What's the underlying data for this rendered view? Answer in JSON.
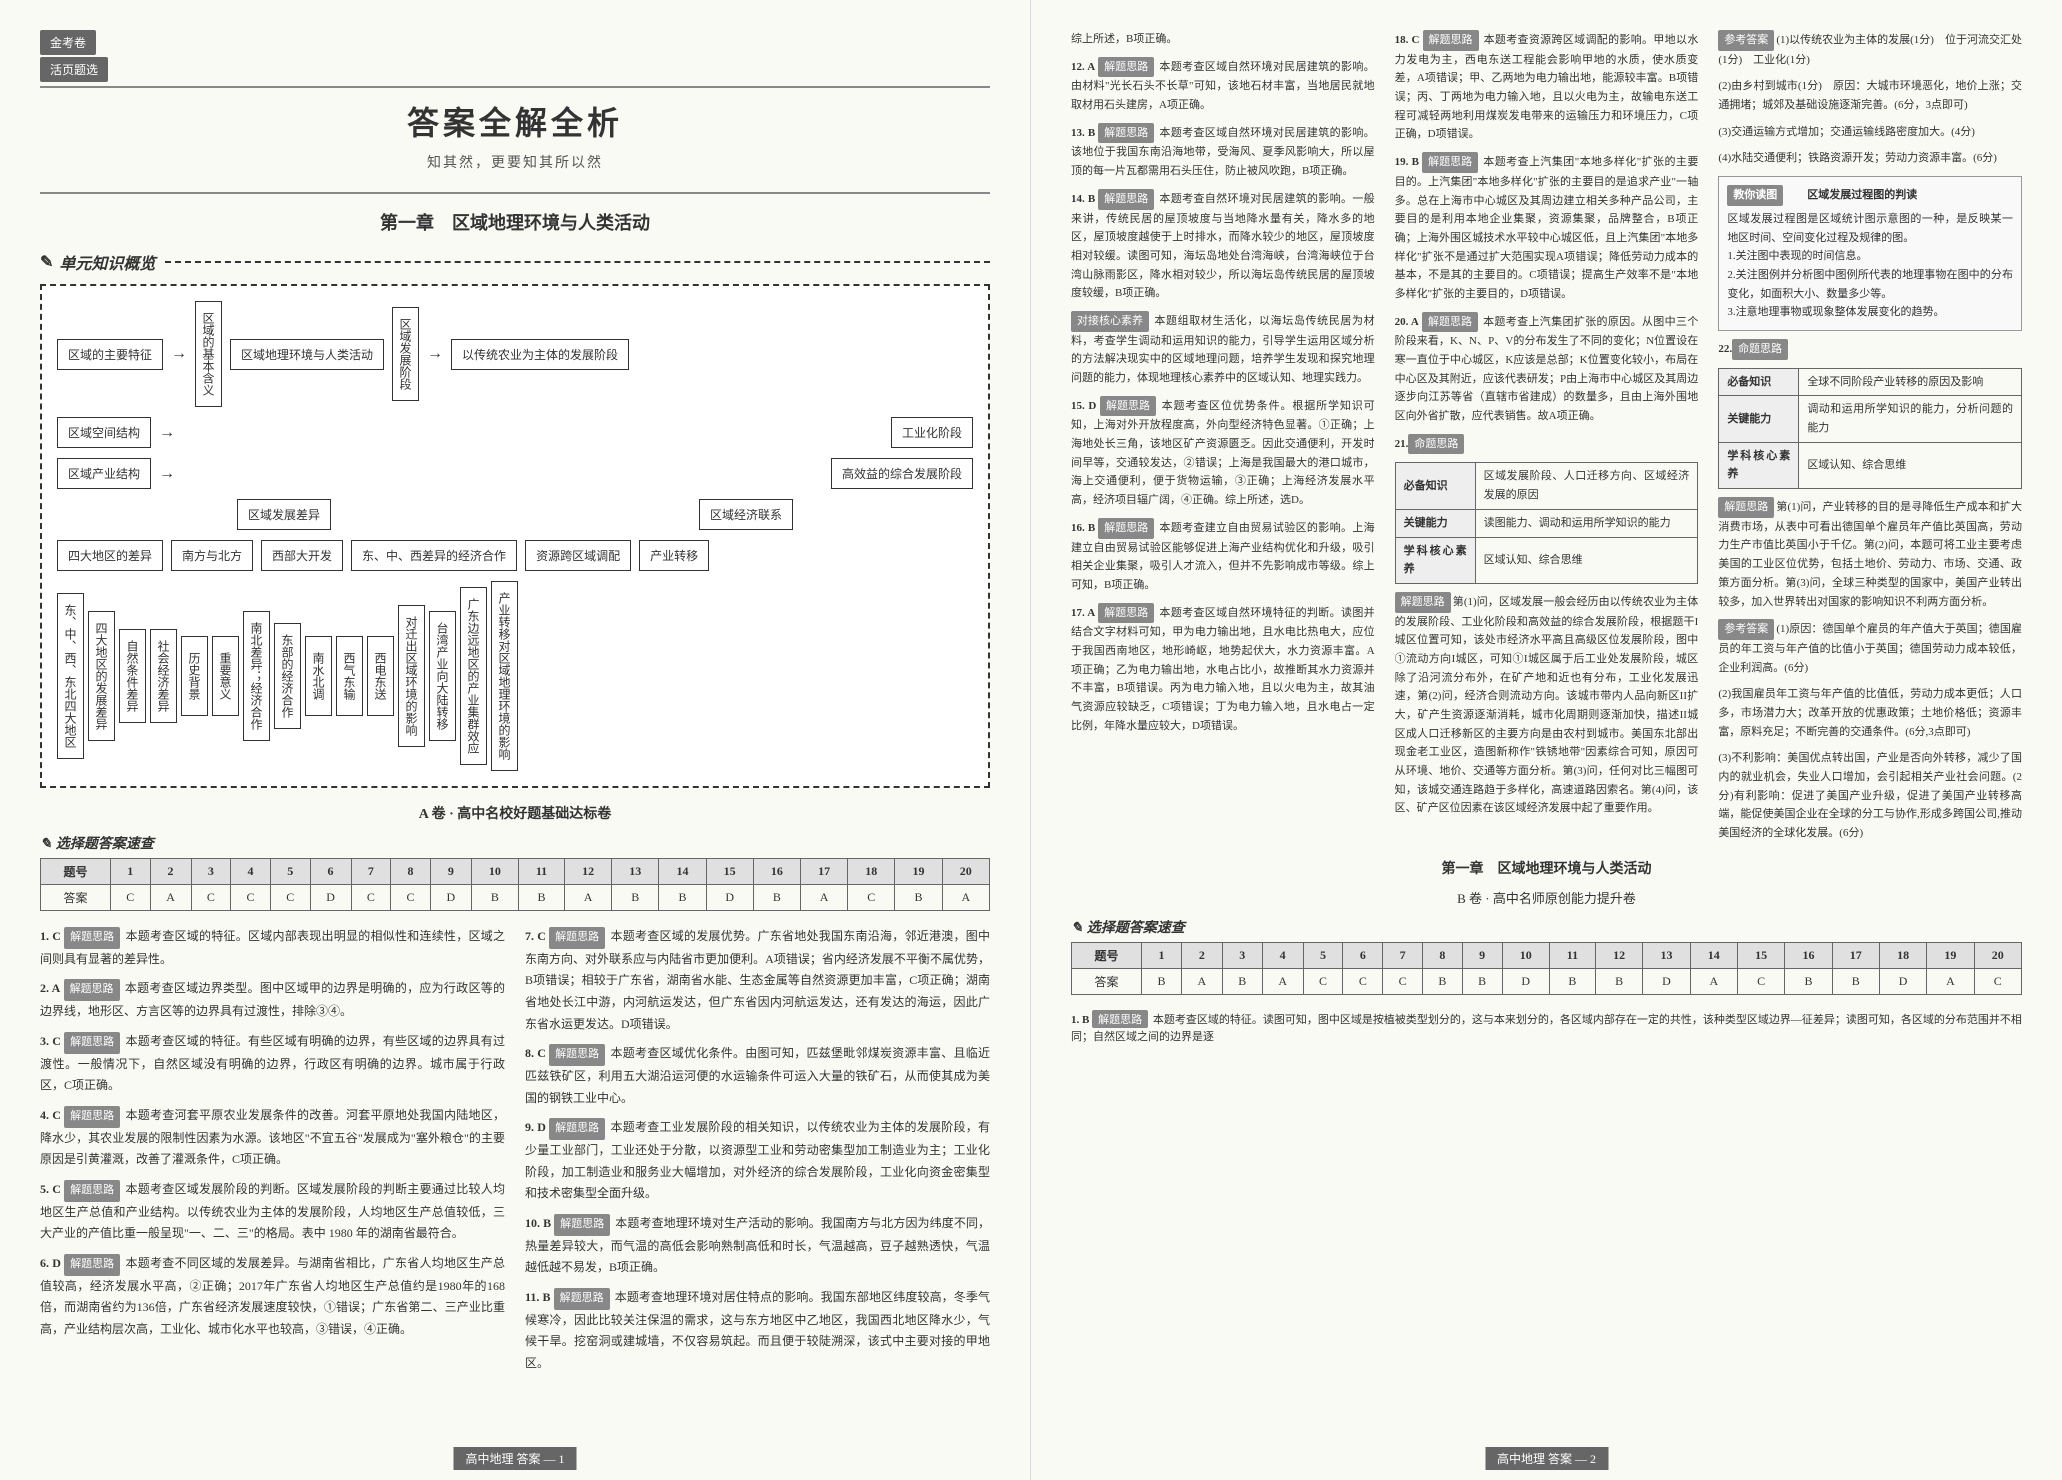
{
  "badge": "金考卷",
  "badge_sub": "活页题选",
  "main_title": "答案全解全析",
  "subtitle": "知其然，更要知其所以然",
  "chapter_title": "第一章　区域地理环境与人类活动",
  "section_overview": "单元知识概览",
  "flowchart": {
    "row1": [
      "区域的主要特征",
      "区域的基本含义",
      "区域地理环境与人类活动",
      "区域发展阶段",
      "以传统农业为主体的发展阶段"
    ],
    "row1b": [
      "区域空间结构",
      "工业化阶段"
    ],
    "row1c": [
      "区域产业结构",
      "高效益的综合发展阶段"
    ],
    "row2_left": "区域发展差异",
    "row2_right": "区域经济联系",
    "row3": [
      "四大地区的差异",
      "南方与北方",
      "西部大开发",
      "东、中、西差异的经济合作",
      "资源跨区域调配",
      "产业转移"
    ],
    "vertical": [
      "东、中、西、东北四大地区",
      "四大地区的发展差异",
      "自然条件差异",
      "社会经济差异",
      "历史背景",
      "重要意义",
      "南北差异；经济合作",
      "东部的经济合作",
      "南水北调",
      "西气东输",
      "西电东送",
      "对迁出区域环境的影响",
      "台湾产业向大陆转移",
      "广东边远地区的产业集群效应",
      "产业转移对区域地理环境的影响"
    ]
  },
  "paper_a_title": "A 卷 · 高中名校好题基础达标卷",
  "answer_check": "选择题答案速查",
  "table_a": {
    "header": [
      "题号",
      "1",
      "2",
      "3",
      "4",
      "5",
      "6",
      "7",
      "8",
      "9",
      "10",
      "11",
      "12",
      "13",
      "14",
      "15",
      "16",
      "17",
      "18",
      "19",
      "20"
    ],
    "row": [
      "答案",
      "C",
      "A",
      "C",
      "C",
      "C",
      "D",
      "C",
      "C",
      "D",
      "B",
      "B",
      "A",
      "B",
      "B",
      "D",
      "B",
      "A",
      "C",
      "B",
      "A"
    ]
  },
  "explanations_left": [
    {
      "num": "1. C",
      "tag": "解题思路",
      "text": "本题考查区域的特征。区域内部表现出明显的相似性和连续性，区域之间则具有显著的差异性。"
    },
    {
      "num": "2. A",
      "tag": "解题思路",
      "text": "本题考查区域边界类型。图中区域甲的边界是明确的，应为行政区等的边界线，地形区、方言区等的边界具有过渡性，排除③④。"
    },
    {
      "num": "3. C",
      "tag": "解题思路",
      "text": "本题考查区域的特征。有些区域有明确的边界，有些区域的边界具有过渡性。一般情况下，自然区域没有明确的边界，行政区有明确的边界。城市属于行政区，C项正确。"
    },
    {
      "num": "4. C",
      "tag": "解题思路",
      "text": "本题考查河套平原农业发展条件的改善。河套平原地处我国内陆地区，降水少，其农业发展的限制性因素为水源。该地区\"不宜五谷\"发展成为\"塞外粮仓\"的主要原因是引黄灌溉，改善了灌溉条件，C项正确。"
    },
    {
      "num": "5. C",
      "tag": "解题思路",
      "text": "本题考查区域发展阶段的判断。区域发展阶段的判断主要通过比较人均地区生产总值和产业结构。以传统农业为主体的发展阶段，人均地区生产总值较低，三大产业的产值比重一般呈现\"一、二、三\"的格局。表中 1980 年的湖南省最符合。"
    },
    {
      "num": "6. D",
      "tag": "解题思路",
      "text": "本题考查不同区域的发展差异。与湖南省相比，广东省人均地区生产总值较高，经济发展水平高，②正确；2017年广东省人均地区生产总值约是1980年的168倍，而湖南省约为136倍，广东省经济发展速度较快，①错误；广东省第二、三产业比重高，产业结构层次高，工业化、城市化水平也较高，③错误，④正确。"
    }
  ],
  "explanations_mid": [
    {
      "num": "7. C",
      "tag": "解题思路",
      "text": "本题考查区域的发展优势。广东省地处我国东南沿海，邻近港澳，图中东南方向、对外联系应与内陆省市更加便利。A项错误；省内经济发展不平衡不属优势，B项错误；相较于广东省，湖南省水能、生态金属等自然资源更加丰富，C项正确；湖南省地处长江中游，内河航运发达，但广东省因内河航运发达，还有发达的海运，因此广东省水运更发达。D项错误。"
    },
    {
      "num": "8. C",
      "tag": "解题思路",
      "text": "本题考查区域优化条件。由图可知，匹兹堡毗邻煤炭资源丰富、且临近匹兹铁矿区，利用五大湖沿运河便的水运输条件可运入大量的铁矿石，从而使其成为美国的钢铁工业中心。"
    },
    {
      "num": "9. D",
      "tag": "解题思路",
      "text": "本题考查工业发展阶段的相关知识，以传统农业为主体的发展阶段，有少量工业部门，工业还处于分散，以资源型工业和劳动密集型加工制造业为主；工业化阶段，加工制造业和服务业大幅增加，对外经济的综合发展阶段，工业化向资金密集型和技术密集型全面升级。"
    },
    {
      "num": "10. B",
      "tag": "解题思路",
      "text": "本题考查地理环境对生产活动的影响。我国南方与北方因为纬度不同，热量差异较大，而气温的高低会影响熟制高低和时长，气温越高，豆子越熟透快，气温越低越不易发，B项正确。"
    },
    {
      "num": "11. B",
      "tag": "解题思路",
      "text": "本题考查地理环境对居住特点的影响。我国东部地区纬度较高，冬季气候寒冷，因此比较关注保温的需求，这与东方地区中乙地区，我国西北地区降水少，气候干旱。挖窑洞或建城墙，不仅容易筑起。而且便于较陡溯深，该式中主要对接的甲地区。"
    }
  ],
  "explanations_right_top": [
    {
      "text": "综上所述，B项正确。"
    },
    {
      "num": "12. A",
      "tag": "解题思路",
      "text": "本题考查区域自然环境对民居建筑的影响。由材料\"光长石头不长草\"可知，该地石材丰富，当地居民就地取材用石头建房，A项正确。"
    },
    {
      "num": "13. B",
      "tag": "解题思路",
      "text": "本题考查区域自然环境对民居建筑的影响。该地位于我国东南沿海地带，受海风、夏季风影响大，所以屋顶的每一片瓦都需用石头压住，防止被风吹跑，B项正确。"
    },
    {
      "num": "14. B",
      "tag": "解题思路",
      "text": "本题考查自然环境对民居建筑的影响。一般来讲，传统民居的屋顶坡度与当地降水量有关，降水多的地区，屋顶坡度越使于上时排水，而降水较少的地区，屋顶坡度相对较缓。读图可知，海坛岛地处台湾海峡，台湾海峡位于台湾山脉雨影区，降水相对较少，所以海坛岛传统民居的屋顶坡度较缓，B项正确。"
    },
    {
      "tag": "对接核心素养",
      "text": "本题组取材生活化，以海坛岛传统民居为材料，考查学生调动和运用知识的能力，引导学生运用区域分析的方法解决现实中的区域地理问题，培养学生发现和探究地理问题的能力，体现地理核心素养中的区域认知、地理实践力。"
    },
    {
      "num": "15. D",
      "tag": "解题思路",
      "text": "本题考查区位优势条件。根据所学知识可知，上海对外开放程度高，外向型经济特色显著。①正确；上海地处长三角，该地区矿产资源匮乏。因此交通便利，开发时间早等，交通较发达，②错误；上海是我国最大的港口城市，海上交通便利，便于货物运输，③正确；上海经济发展水平高，经济项目辐广阔，④正确。综上所述，选D。"
    },
    {
      "num": "16. B",
      "tag": "解题思路",
      "text": "本题考查建立自由贸易试验区的影响。上海建立自由贸易试验区能够促进上海产业结构优化和升级，吸引相关企业集聚，吸引人才流入，但并不先影响成市等级。综上可知，B项正确。"
    },
    {
      "num": "17. A",
      "tag": "解题思路",
      "text": "本题考查区域自然环境特征的判断。读图并结合文字材料可知，甲为电力输出地，且水电比热电大，应位于我国西南地区，地形崎岖，地势起伏大，水力资源丰富。A项正确；乙为电力输出地，水电占比小，故推断其水力资源并不丰富，B项错误。丙为电力输入地，且以火电为主，故其油气资源应较缺乏，C项错误；丁为电力输入地，且水电占一定比例，年降水量应较大，D项错误。"
    },
    {
      "num": "18. C",
      "tag": "解题思路",
      "text": "本题考查资源跨区域调配的影响。甲地以水力发电为主，西电东送工程能会影响甲地的水质，使水质变差，A项错误；甲、乙两地为电力输出地，能源较丰富。B项错误；丙、丁两地为电力输入地，且以火电为主，故输电东送工程可减轻两地利用煤炭发电带来的运输压力和环境压力，C项正确，D项错误。"
    },
    {
      "num": "19. B",
      "tag": "解题思路",
      "text": "本题考查上汽集团\"本地多样化\"扩张的主要目的。上汽集团\"本地多样化\"扩张的主要目的是追求产业\"一轴多。总在上海市中心城区及其周边建立相关多种产品公司，主要目的是利用本地企业集聚，资源集聚，品牌整合，B项正确；上海外围区城技术水平较中心城区低，且上汽集团\"本地多样化\"扩张不是通过扩大范围实现A项错误；降低劳动力成本的基本，不是其的主要目的。C项错误；提高生产效率不是\"本地多样化\"扩张的主要目的，D项错误。"
    },
    {
      "num": "20. A",
      "tag": "解题思路",
      "text": "本题考查上汽集团扩张的原因。从图中三个阶段来看，K、N、P、V的分布发生了不同的变化；N位置设在寒一直位于中心城区，K应该是总部；K位置变化较小，布局在中心区及其附近，应该代表研发；P由上海市中心城区及其周边逐步向江苏等省（直辖市省建成）的数量多，且由上海外围地区向外省扩散，应代表销售。故A项正确。"
    }
  ],
  "q21": {
    "num": "21.",
    "tag": "命题思路",
    "table": [
      [
        "必备知识",
        "区域发展阶段、人口迁移方向、区域经济发展的原因"
      ],
      [
        "关键能力",
        "读图能力、调动和运用所学知识的能力"
      ],
      [
        "学科核心素养",
        "区域认知、综合思维"
      ]
    ],
    "answer_label": "参考答案",
    "answer_text": "第(1)问，区域发展一般会经历由以传统农业为主体的发展阶段、工业化阶段和高效益的综合发展阶段，根据题干I城区位置可知，该处市经济水平高且高级区位发展阶段，图中①流动方向I城区，可知①I城区属于后工业处发展阶段，城区除了沿河流分布外，在矿产地和近也有分布，工业化发展迅速，第(2)问，经济合则流动方向。该城市带内人品向新区II扩大，矿产生资源逐渐消耗，城市化周期则逐渐加快，描述II城区成人口迁移新区的主要方向是由农村到城市。美国东北部出现金老工业区，造图新称作\"铁锈地带\"因素综合可知，原因可从环境、地价、交通等方面分析。第(3)问，任何对比三幅图可知，该城交通连路趋于多样化，高速道路因索名。第(4)问，该区、矿产区位因素在该区域经济发展中起了重要作用。",
    "ref_answer": "(1)以传统农业为主体的发展(1分)　位于河流交汇处(1分)　工业化(1分)",
    "ref_answer2": "(2)由乡村到城市(1分)　原因：大城市环境恶化，地价上涨；交通拥堵；城郊及基础设施逐渐完善。(6分，3点即可)",
    "ref_answer3": "(3)交通运输方式增加；交通运输线路密度加大。(4分)",
    "ref_answer4": "(4)水陆交通便利；铁路资源开发；劳动力资源丰富。(6分)"
  },
  "tip_box": {
    "header": "区域发展过程图的判读",
    "label": "教你读图",
    "text": "区域发展过程图是区域统计图示意图的一种，是反映某一地区时间、空间变化过程及规律的图。\n1.关注图中表现的时间信息。\n2.关注图例并分析图中图例所代表的地理事物在图中的分布变化，如面积大小、数量多少等。\n3.注意地理事物或现象整体发展变化的趋势。"
  },
  "q22": {
    "num": "22.",
    "tag": "命题思路",
    "table": [
      [
        "必备知识",
        "全球不同阶段产业转移的原因及影响"
      ],
      [
        "关键能力",
        "调动和运用所学知识的能力，分析问题的能力"
      ],
      [
        "学科核心素养",
        "区域认知、综合思维"
      ]
    ],
    "text": "第(1)问，产业转移的目的是寻降低生产成本和扩大消费市场，从表中可看出德国单个雇员年产值比英国高，劳动力生产市值比英国小于千亿。第(2)问，本题可将工业主要考虑美国的工业区位优势，包括土地价、劳动力、市场、交通、政策方面分析。第(3)问，全球三种类型的国家中，美国产业转出较多，加入世界转出对国家的影响知识不利两方面分析。",
    "ref_label": "参考答案",
    "ref1": "(1)原因：德国单个雇员的年产值大于英国；德国雇员的年工资与年产值的比值小于英国；德国劳动力成本较低，企业利润高。(6分)",
    "ref2": "(2)我国雇员年工资与年产值的比值低，劳动力成本更低；人口多，市场潜力大；改革开放的优惠政策；土地价格低；资源丰富，原料充足；不断完善的交通条件。(6分,3点即可)",
    "ref3": "(3)不利影响：美国优点转出国，产业是否向外转移，减少了国内的就业机会，失业人口增加，会引起相关产业社会问题。(2分)有利影响：促进了美国产业升级，促进了美国产业转移高端，能促使美国企业在全球的分工与协作,形成多跨国公司,推动美国经济的全球化发展。(6分)"
  },
  "chapter_right": "第一章　区域地理环境与人类活动",
  "paper_b_label": "B 卷 · 高中名师原创能力提升卷",
  "table_b": {
    "header": [
      "题号",
      "1",
      "2",
      "3",
      "4",
      "5",
      "6",
      "7",
      "8",
      "9",
      "10",
      "11",
      "12",
      "13",
      "14",
      "15",
      "16",
      "17",
      "18",
      "19",
      "20"
    ],
    "row": [
      "答案",
      "B",
      "A",
      "B",
      "A",
      "C",
      "C",
      "C",
      "B",
      "B",
      "D",
      "B",
      "B",
      "D",
      "A",
      "C",
      "B",
      "B",
      "D",
      "A",
      "C"
    ]
  },
  "exp_b1": {
    "num": "1. B",
    "tag": "解题思路",
    "text": "本题考查区域的特征。读图可知，图中区域是按植被类型划分的，这与本来划分的，各区域内部存在一定的共性，该种类型区域边界—征差异；读图可知，各区域的分布范围并不相同；自然区域之间的边界是逐"
  },
  "footer_left": "高中地理 答案 — 1",
  "footer_right": "高中地理 答案 — 2"
}
